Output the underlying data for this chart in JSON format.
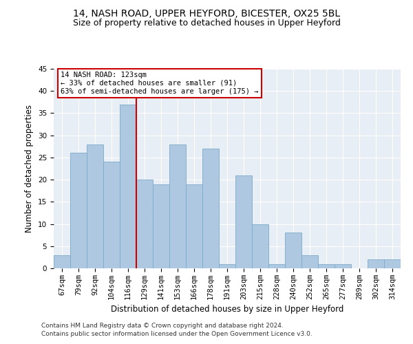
{
  "title": "14, NASH ROAD, UPPER HEYFORD, BICESTER, OX25 5BL",
  "subtitle": "Size of property relative to detached houses in Upper Heyford",
  "xlabel": "Distribution of detached houses by size in Upper Heyford",
  "ylabel": "Number of detached properties",
  "categories": [
    "67sqm",
    "79sqm",
    "92sqm",
    "104sqm",
    "116sqm",
    "129sqm",
    "141sqm",
    "153sqm",
    "166sqm",
    "178sqm",
    "191sqm",
    "203sqm",
    "215sqm",
    "228sqm",
    "240sqm",
    "252sqm",
    "265sqm",
    "277sqm",
    "289sqm",
    "302sqm",
    "314sqm"
  ],
  "values": [
    3,
    26,
    28,
    24,
    37,
    20,
    19,
    28,
    19,
    27,
    1,
    21,
    10,
    1,
    8,
    3,
    1,
    1,
    0,
    2,
    2
  ],
  "bar_color": "#adc8e0",
  "bar_edge_color": "#7aaac8",
  "vline_x": 4.5,
  "vline_color": "#cc0000",
  "annotation_text": "14 NASH ROAD: 123sqm\n← 33% of detached houses are smaller (91)\n63% of semi-detached houses are larger (175) →",
  "annotation_box_color": "#ffffff",
  "annotation_box_edge_color": "#cc0000",
  "ylim": [
    0,
    45
  ],
  "yticks": [
    0,
    5,
    10,
    15,
    20,
    25,
    30,
    35,
    40,
    45
  ],
  "footer1": "Contains HM Land Registry data © Crown copyright and database right 2024.",
  "footer2": "Contains public sector information licensed under the Open Government Licence v3.0.",
  "bg_color": "#e8eef5",
  "title_fontsize": 10,
  "subtitle_fontsize": 9,
  "axis_label_fontsize": 8.5,
  "tick_fontsize": 7.5,
  "annotation_fontsize": 7.5,
  "footer_fontsize": 6.5
}
